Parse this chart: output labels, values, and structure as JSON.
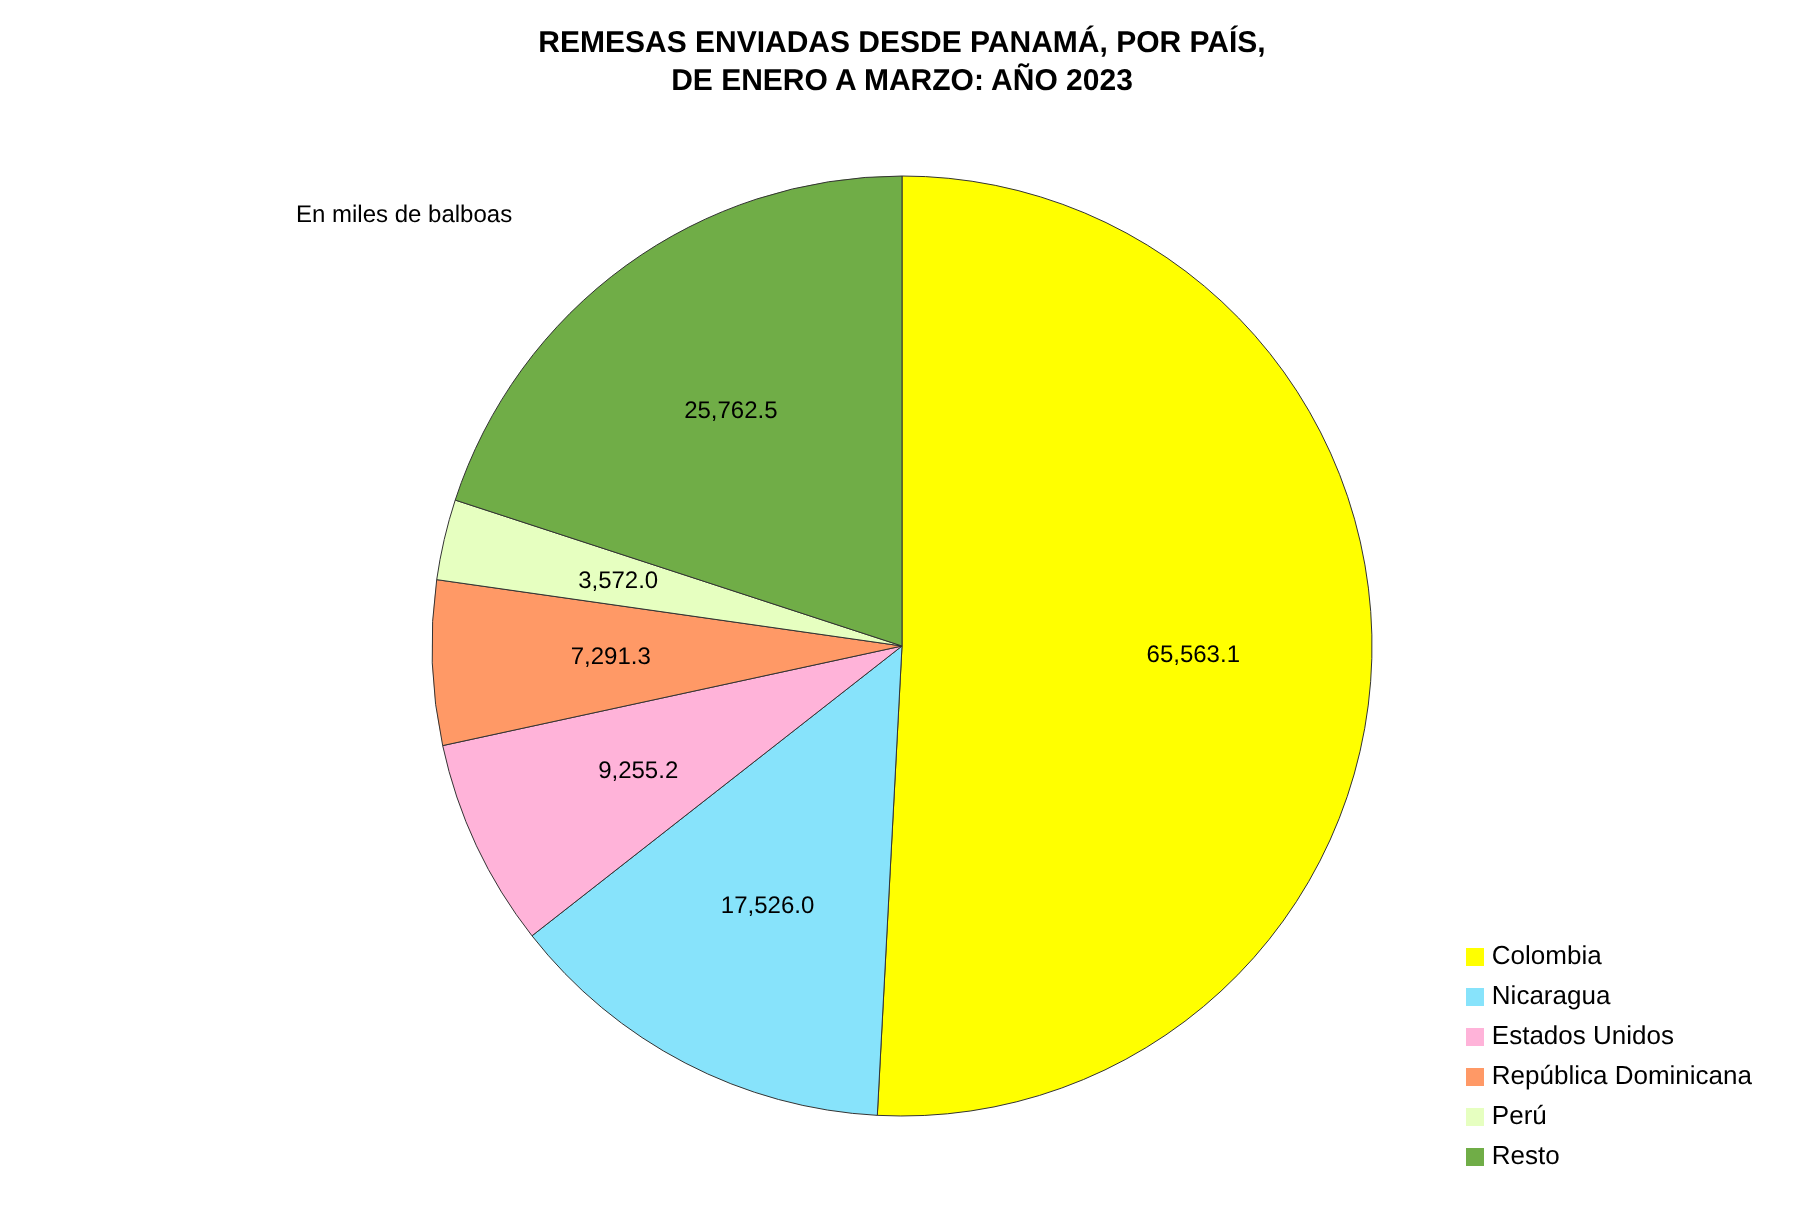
{
  "chart_data": {
    "type": "pie",
    "title": "REMESAS ENVIADAS DESDE PANAMÁ, POR PAÍS,\nDE ENERO A MARZO: AÑO 2023",
    "annotations": [
      "En miles de balboas"
    ],
    "categories": [
      "Colombia",
      "Nicaragua",
      "Estados Unidos",
      "República Dominicana",
      "Perú",
      "Resto"
    ],
    "values": [
      65563.1,
      17526.0,
      9255.2,
      7291.3,
      3572.0,
      25762.5
    ],
    "value_labels": [
      "65,563.1",
      "17,526.0",
      "9,255.2",
      "7,291.3",
      "3,572.0",
      "25,762.5"
    ],
    "colors": [
      "#ffff00",
      "#87e3fb",
      "#ffb3d9",
      "#ff9966",
      "#e6ffc0",
      "#70ad47"
    ],
    "legend": "bottom right"
  }
}
